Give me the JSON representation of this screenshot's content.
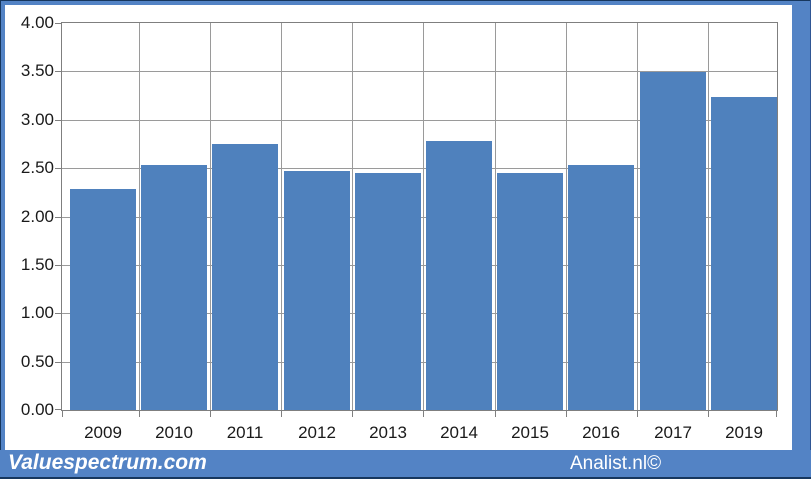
{
  "window": {
    "frame_color": "#5383c5",
    "edge_color": "#17375e",
    "panel_color": "#ffffff"
  },
  "chart_data": {
    "type": "bar",
    "categories": [
      "2009",
      "2010",
      "2011",
      "2012",
      "2013",
      "2014",
      "2015",
      "2016",
      "2017",
      "2019"
    ],
    "values": [
      2.28,
      2.53,
      2.75,
      2.47,
      2.45,
      2.78,
      2.45,
      2.53,
      3.49,
      3.23
    ],
    "title": "",
    "xlabel": "",
    "ylabel": "",
    "ylim": [
      0,
      4
    ],
    "ytick_step": 0.5,
    "ytick_labels": [
      "4.00",
      "3.50",
      "3.00",
      "2.50",
      "2.00",
      "1.50",
      "1.00",
      "0.50",
      "0.00"
    ],
    "bar_color": "#4f81bd",
    "grid": true,
    "gridline_color": "#9a9a9a",
    "axis_border_color": "#7f7f7f",
    "tick_label_color": "#1a1a1a",
    "legend": null
  },
  "footer": {
    "left_text": "Valuespectrum.com",
    "right_text": "Analist.nl©",
    "bar_color": "#5383c5",
    "text_color": "#ffffff"
  }
}
